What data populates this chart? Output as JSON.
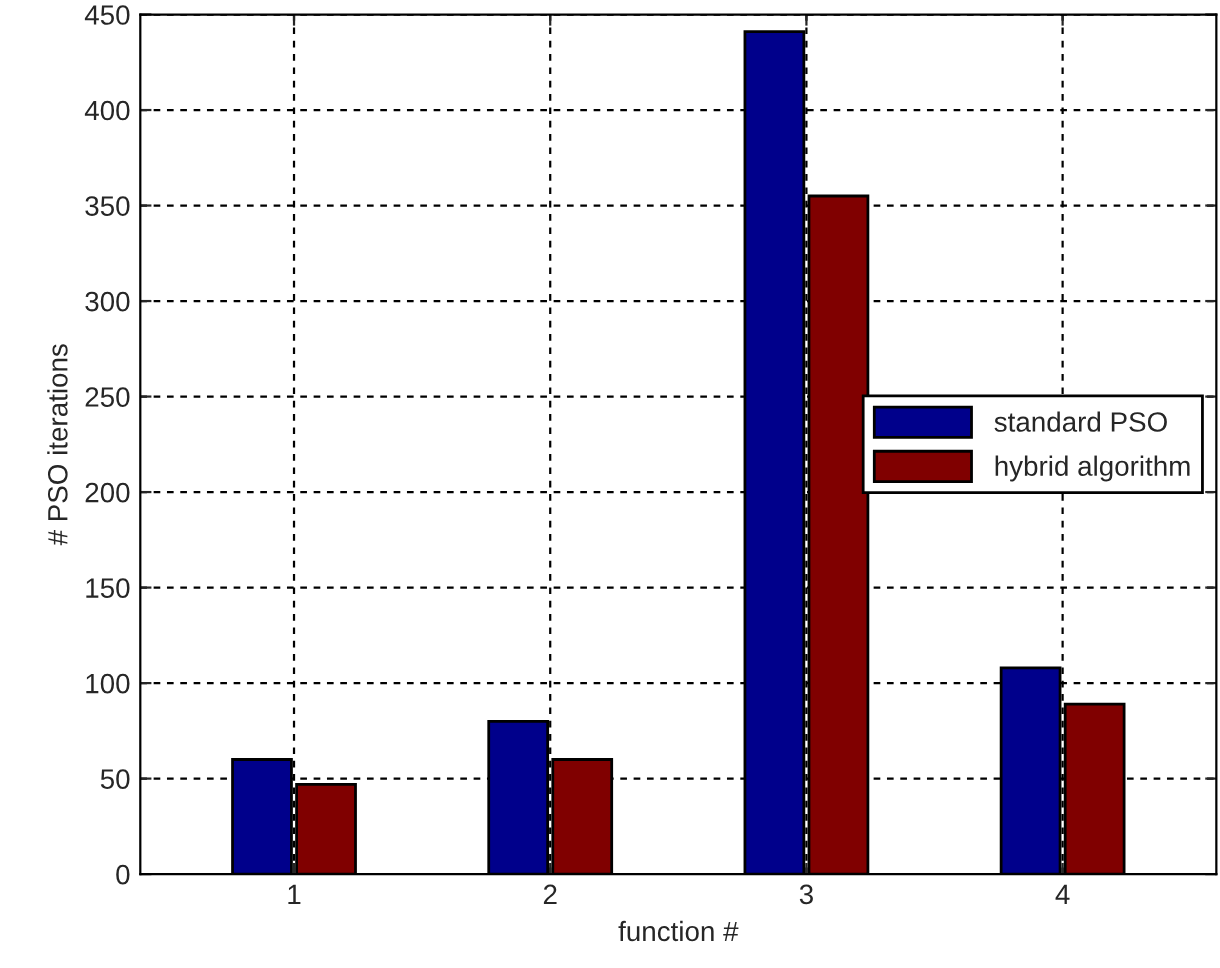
{
  "chart_data": {
    "type": "bar",
    "xlabel": "function #",
    "ylabel": "# PSO iterations",
    "categories": [
      "1",
      "2",
      "3",
      "4"
    ],
    "series": [
      {
        "name": "standard PSO",
        "color": "#00008b",
        "values": [
          60,
          80,
          441,
          108
        ]
      },
      {
        "name": "hybrid algorithm",
        "color": "#800000",
        "values": [
          47,
          60,
          355,
          89
        ]
      }
    ],
    "ylim": [
      0,
      450
    ],
    "yticks": [
      0,
      50,
      100,
      150,
      200,
      250,
      300,
      350,
      400,
      450
    ],
    "grid": true,
    "legend": "center right"
  }
}
